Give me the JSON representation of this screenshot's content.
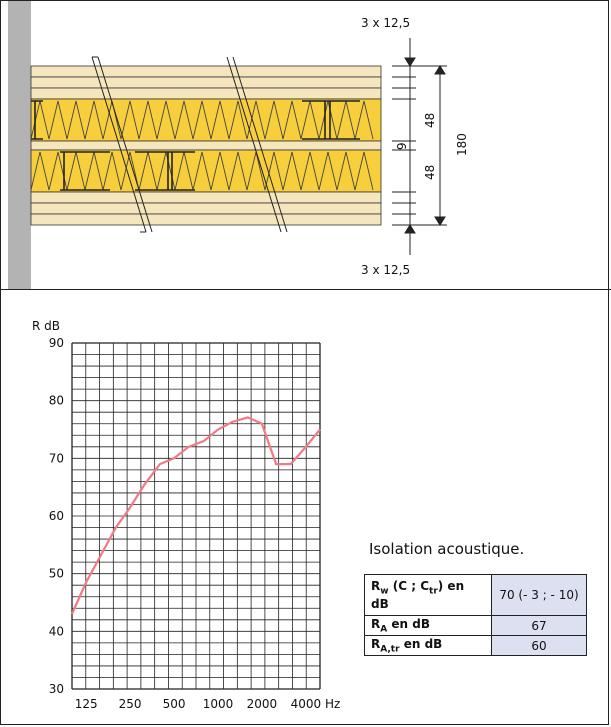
{
  "diagram": {
    "top_dimension": "3 x 12,5",
    "bottom_dimension": "3 x 12,5",
    "dim_upper_cavity": "48",
    "dim_gap": "9",
    "dim_lower_cavity": "48",
    "dim_total": "180",
    "colors": {
      "board": "#f6e6bd",
      "insulation": "#f7cf3c",
      "wall": "#b3b3b3"
    }
  },
  "caption": "Isolation acoustique.",
  "table": {
    "rows": [
      {
        "key_main": "R",
        "key_sub": "w",
        "key_rest_1": " (C ; C",
        "key_sub_2": "tr",
        "key_rest_2": ") en dB",
        "value": "70 (- 3 ; - 10)"
      },
      {
        "key_main": "R",
        "key_sub": "A",
        "key_rest_1": " en dB",
        "value": "67"
      },
      {
        "key_main": "R",
        "key_sub": "A,tr",
        "key_rest_1": " en dB",
        "value": "60"
      }
    ]
  },
  "chart_data": {
    "type": "line",
    "ylabel": "R dB",
    "xunit": "Hz",
    "x_tick_labels": [
      "125",
      "250",
      "500",
      "1000",
      "2000",
      "4000"
    ],
    "y_ticks": [
      30,
      40,
      50,
      60,
      70,
      80,
      90
    ],
    "ylim": [
      30,
      90
    ],
    "x_scale": "log",
    "grid": true,
    "line_color": "#f07a86",
    "series": [
      {
        "x": [
          100,
          125,
          160,
          200,
          250,
          315,
          400,
          500,
          630,
          800,
          1000,
          1250,
          1600,
          2000,
          2500,
          3150,
          4000,
          5000
        ],
        "values": [
          43,
          48.5,
          53.5,
          58,
          61.5,
          65.5,
          69,
          70,
          72,
          73,
          75,
          76.3,
          77.1,
          76,
          69,
          69,
          72,
          75
        ]
      }
    ]
  }
}
